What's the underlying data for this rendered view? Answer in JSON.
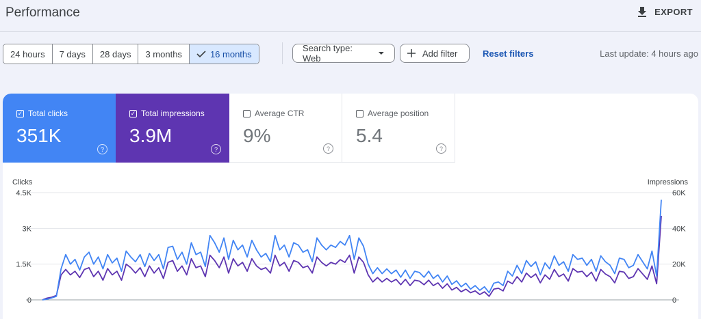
{
  "header": {
    "title": "Performance",
    "export_label": "EXPORT"
  },
  "date_range": {
    "options": [
      "24 hours",
      "7 days",
      "28 days",
      "3 months",
      "16 months"
    ],
    "selected": "16 months"
  },
  "filters": {
    "search_type": "Search type: Web",
    "add_filter": "Add filter",
    "reset": "Reset filters"
  },
  "last_update": "Last update: 4 hours ago",
  "metrics": {
    "clicks": {
      "label": "Total clicks",
      "value": "351K",
      "checked": true,
      "color": "#4285f4"
    },
    "impressions": {
      "label": "Total impressions",
      "value": "3.9M",
      "checked": true,
      "color": "#5e35b1"
    },
    "ctr": {
      "label": "Average CTR",
      "value": "9%",
      "checked": false
    },
    "position": {
      "label": "Average position",
      "value": "5.4",
      "checked": false
    }
  },
  "chart_data": {
    "type": "line",
    "left_axis_label": "Clicks",
    "right_axis_label": "Impressions",
    "left_ticks": [
      "0",
      "1.5K",
      "3K",
      "4.5K"
    ],
    "right_ticks": [
      "0",
      "20K",
      "40K",
      "60K"
    ],
    "left_range": [
      0,
      4500
    ],
    "right_range": [
      0,
      60000
    ],
    "grid": true,
    "series": [
      {
        "name": "Total clicks",
        "axis": "left",
        "color": "#4285f4",
        "values": [
          0,
          30,
          80,
          150,
          1300,
          1900,
          1500,
          1700,
          1250,
          1800,
          2000,
          1500,
          1800,
          1300,
          1900,
          1550,
          1750,
          1200,
          2050,
          1800,
          1600,
          1900,
          1400,
          1950,
          1650,
          1900,
          1300,
          2200,
          2250,
          1700,
          2000,
          1500,
          2400,
          1900,
          2000,
          1400,
          2700,
          2400,
          2000,
          2600,
          1700,
          2500,
          2100,
          2300,
          1800,
          2500,
          2100,
          1800,
          1950,
          1600,
          2700,
          2100,
          2300,
          1800,
          2400,
          2300,
          2000,
          2100,
          1600,
          2600,
          2300,
          2100,
          2300,
          2200,
          2450,
          2300,
          2700,
          1700,
          2600,
          2250,
          1500,
          1100,
          1350,
          1100,
          1300,
          1100,
          1250,
          950,
          1250,
          900,
          1200,
          1150,
          950,
          1200,
          900,
          1050,
          750,
          1000,
          650,
          800,
          550,
          700,
          450,
          600,
          400,
          550,
          300,
          700,
          750,
          600,
          1200,
          1000,
          1450,
          1100,
          1650,
          1400,
          1600,
          1050,
          1550,
          1300,
          1850,
          1450,
          1600,
          1200,
          1900,
          1700,
          1750,
          1450,
          1700,
          1200,
          1850,
          1600,
          1450,
          1100,
          1750,
          1700,
          1350,
          1450,
          1900,
          1600,
          1300,
          2050,
          1000,
          4200
        ]
      },
      {
        "name": "Total impressions",
        "axis": "right",
        "color": "#5e35b1",
        "values": [
          0,
          1000,
          1500,
          2500,
          14000,
          17000,
          14000,
          16000,
          12500,
          17000,
          18000,
          13000,
          16000,
          11000,
          17500,
          14000,
          16000,
          11000,
          20000,
          18000,
          15000,
          18000,
          13000,
          19000,
          15000,
          18000,
          12000,
          21000,
          22000,
          16000,
          19000,
          14000,
          23000,
          18000,
          19000,
          13000,
          25000,
          22000,
          18000,
          24000,
          15000,
          23000,
          19000,
          21000,
          16000,
          23000,
          19000,
          17000,
          18000,
          15000,
          25000,
          19000,
          21000,
          16000,
          22000,
          21000,
          18000,
          19000,
          15000,
          24000,
          21000,
          19000,
          21000,
          20000,
          22500,
          21000,
          25000,
          15000,
          24000,
          21000,
          14000,
          10000,
          12500,
          10000,
          12000,
          10000,
          11500,
          8500,
          11500,
          8000,
          11000,
          10500,
          8500,
          11000,
          8000,
          9500,
          6500,
          9000,
          5500,
          7000,
          4500,
          6000,
          4000,
          5000,
          3000,
          4500,
          2000,
          6000,
          6500,
          5000,
          10500,
          9000,
          13000,
          10000,
          15000,
          12500,
          14500,
          9500,
          14000,
          11500,
          17000,
          13000,
          14500,
          10500,
          17500,
          15500,
          16000,
          13000,
          15500,
          10500,
          17000,
          14500,
          13000,
          9500,
          16000,
          15500,
          12000,
          13000,
          17500,
          14500,
          11500,
          19000,
          9000,
          47000
        ]
      }
    ]
  }
}
